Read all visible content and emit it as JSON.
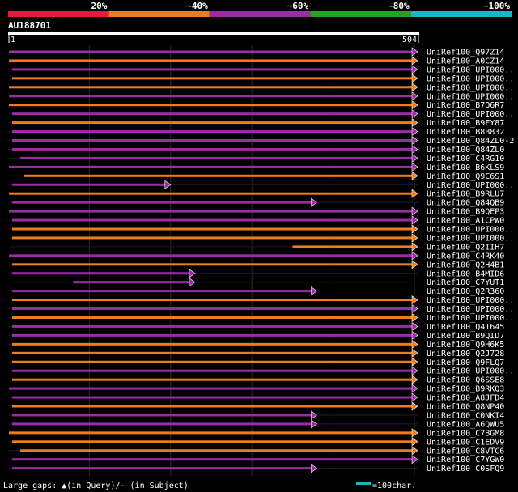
{
  "legend": {
    "bins": [
      {
        "label": "20%",
        "color": "#e8193c"
      },
      {
        "label": "~40%",
        "color": "#ef7b1a"
      },
      {
        "label": "~60%",
        "color": "#9b2ba7"
      },
      {
        "label": "~80%",
        "color": "#21a521"
      },
      {
        "label": "~100%",
        "color": "#18b6c6"
      }
    ]
  },
  "chart_data": {
    "type": "alignment-overview",
    "query_id": "AU188701",
    "query_length": 504,
    "query_start_label": "1",
    "query_end_label": "504",
    "hits": [
      {
        "name": "UniRef100_Q97Z14",
        "start": 1,
        "end": 504,
        "color": "#9b2ba7"
      },
      {
        "name": "UniRef100_A0CZ14",
        "start": 1,
        "end": 504,
        "color": "#ef7b1a"
      },
      {
        "name": "UniRef100_UPI000..",
        "start": 5,
        "end": 504,
        "color": "#9b2ba7"
      },
      {
        "name": "UniRef100_UPI000..",
        "start": 5,
        "end": 504,
        "color": "#ef7b1a"
      },
      {
        "name": "UniRef100_UPI000..",
        "start": 1,
        "end": 504,
        "color": "#ef7b1a"
      },
      {
        "name": "UniRef100_UPI000..",
        "start": 1,
        "end": 504,
        "color": "#9b2ba7"
      },
      {
        "name": "UniRef100_B7Q6R7",
        "start": 1,
        "end": 504,
        "color": "#ef7b1a"
      },
      {
        "name": "UniRef100_UPI000..",
        "start": 5,
        "end": 504,
        "color": "#9b2ba7"
      },
      {
        "name": "UniRef100_B9FY87",
        "start": 5,
        "end": 504,
        "color": "#ef7b1a"
      },
      {
        "name": "UniRef100_B8B832",
        "start": 5,
        "end": 504,
        "color": "#9b2ba7"
      },
      {
        "name": "UniRef100_Q84ZL0-2",
        "start": 5,
        "end": 504,
        "color": "#9b2ba7"
      },
      {
        "name": "UniRef100_Q84ZL0",
        "start": 5,
        "end": 504,
        "color": "#9b2ba7"
      },
      {
        "name": "UniRef100_C4RG10",
        "start": 15,
        "end": 504,
        "color": "#9b2ba7"
      },
      {
        "name": "UniRef100_B6KLS9",
        "start": 1,
        "end": 504,
        "color": "#9b2ba7"
      },
      {
        "name": "UniRef100_Q9C6S1",
        "start": 20,
        "end": 504,
        "color": "#ef7b1a"
      },
      {
        "name": "UniRef100_UPI000..",
        "start": 5,
        "end": 200,
        "color": "#9b2ba7"
      },
      {
        "name": "UniRef100_B9RLU7",
        "start": 1,
        "end": 504,
        "color": "#ef7b1a"
      },
      {
        "name": "UniRef100_Q84QB9",
        "start": 5,
        "end": 380,
        "color": "#9b2ba7"
      },
      {
        "name": "UniRef100_B9QEP3",
        "start": 1,
        "end": 504,
        "color": "#9b2ba7"
      },
      {
        "name": "UniRef100_A1CPW0",
        "start": 5,
        "end": 504,
        "color": "#9b2ba7"
      },
      {
        "name": "UniRef100_UPI000..",
        "start": 5,
        "end": 504,
        "color": "#ef7b1a"
      },
      {
        "name": "UniRef100_UPI000..",
        "start": 5,
        "end": 504,
        "color": "#ef7b1a"
      },
      {
        "name": "UniRef100_Q2IIH7",
        "start": 350,
        "end": 504,
        "color": "#ef7b1a"
      },
      {
        "name": "UniRef100_C4RK40",
        "start": 1,
        "end": 504,
        "color": "#9b2ba7"
      },
      {
        "name": "UniRef100_Q2H4B1",
        "start": 5,
        "end": 504,
        "color": "#ef7b1a"
      },
      {
        "name": "UniRef100_B4MID6",
        "start": 5,
        "end": 230,
        "color": "#9b2ba7"
      },
      {
        "name": "UniRef100_C7YUT1",
        "start": 80,
        "end": 230,
        "color": "#9b2ba7"
      },
      {
        "name": "UniRef100_Q2R360",
        "start": 5,
        "end": 380,
        "color": "#9b2ba7"
      },
      {
        "name": "UniRef100_UPI000..",
        "start": 5,
        "end": 504,
        "color": "#ef7b1a"
      },
      {
        "name": "UniRef100_UPI000..",
        "start": 5,
        "end": 504,
        "color": "#9b2ba7"
      },
      {
        "name": "UniRef100_UPI000..",
        "start": 5,
        "end": 504,
        "color": "#ef7b1a"
      },
      {
        "name": "UniRef100_Q41645",
        "start": 5,
        "end": 504,
        "color": "#9b2ba7"
      },
      {
        "name": "UniRef100_B9QID7",
        "start": 5,
        "end": 504,
        "color": "#9b2ba7"
      },
      {
        "name": "UniRef100_Q9H6K5",
        "start": 5,
        "end": 504,
        "color": "#ef7b1a"
      },
      {
        "name": "UniRef100_Q2J728",
        "start": 5,
        "end": 504,
        "color": "#ef7b1a"
      },
      {
        "name": "UniRef100_Q9FLQ7",
        "start": 5,
        "end": 504,
        "color": "#ef7b1a"
      },
      {
        "name": "UniRef100_UPI000..",
        "start": 5,
        "end": 504,
        "color": "#9b2ba7"
      },
      {
        "name": "UniRef100_Q6SSE8",
        "start": 5,
        "end": 504,
        "color": "#ef7b1a"
      },
      {
        "name": "UniRef100_B9RKQ3",
        "start": 1,
        "end": 504,
        "color": "#9b2ba7"
      },
      {
        "name": "UniRef100_A8JFD4",
        "start": 5,
        "end": 504,
        "color": "#9b2ba7"
      },
      {
        "name": "UniRef100_Q8NP40",
        "start": 5,
        "end": 504,
        "color": "#ef7b1a"
      },
      {
        "name": "UniRef100_C0NKI4",
        "start": 5,
        "end": 380,
        "color": "#9b2ba7"
      },
      {
        "name": "UniRef100_A6QWU5",
        "start": 5,
        "end": 380,
        "color": "#9b2ba7"
      },
      {
        "name": "UniRef100_C7BGM8",
        "start": 1,
        "end": 504,
        "color": "#ef7b1a"
      },
      {
        "name": "UniRef100_C1EDV9",
        "start": 5,
        "end": 504,
        "color": "#ef7b1a"
      },
      {
        "name": "UniRef100_C8VTC6",
        "start": 15,
        "end": 504,
        "color": "#ef7b1a"
      },
      {
        "name": "UniRef100_C7YGW0",
        "start": 5,
        "end": 504,
        "color": "#9b2ba7"
      },
      {
        "name": "UniRef100_C0SFQ9",
        "start": 5,
        "end": 380,
        "color": "#9b2ba7"
      }
    ]
  },
  "footer": {
    "gaps_label": "Large gaps: ▲(in Query)/- (in Subject)",
    "scale_label": "=100char.",
    "scale_color": "#18b6c6"
  }
}
